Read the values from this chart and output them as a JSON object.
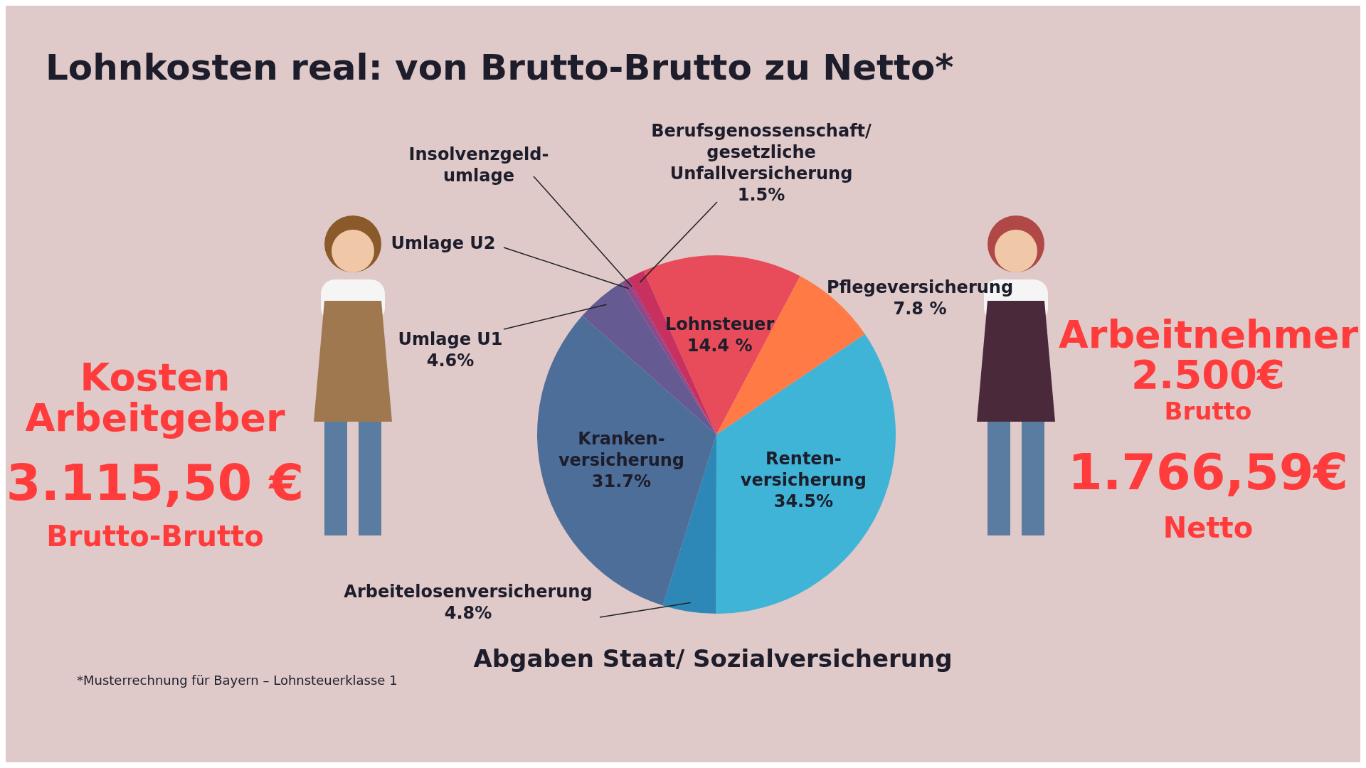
{
  "chart_data": {
    "type": "pie",
    "title": "Lohnkosten real: von Brutto-Brutto zu Netto*",
    "xlabel": "Abgaben Staat/ Sozialversicherung",
    "categories": [
      "Lohnsteuer",
      "Pflegeversicherung",
      "Renten-\nversicherung",
      "Arbeitelosenversicherung",
      "Kranken-\nversicherung",
      "Umlage U1",
      "Umlage U2",
      "Insolvenzgeld-\numlage",
      "Berufsgenossenschaft/\ngesetzliche\nUnfallversicherung"
    ],
    "values": [
      14.4,
      7.8,
      34.5,
      4.8,
      31.7,
      4.6,
      0.5,
      0.2,
      1.5
    ],
    "value_labels": [
      "14.4 %",
      "7.8 %",
      "34.5%",
      "4.8%",
      "31.7%",
      "4.6%",
      null,
      null,
      "1.5%"
    ],
    "colors": [
      "#e84c5a",
      "#ff7a45",
      "#40b4d6",
      "#2d88b8",
      "#4e6e9a",
      "#665a92",
      "#8a4a8a",
      "#a03a80",
      "#c8305f"
    ],
    "legend": false,
    "annotations": [
      "Kosten\nArbeitgeber",
      "3.115,50 €",
      "Brutto-Brutto",
      "Arbeitnehmer",
      "2.500€",
      "Brutto",
      "1.766,59€",
      "Netto",
      "*Musterrechnung für Bayern – Lohnsteuerklasse 1"
    ]
  }
}
